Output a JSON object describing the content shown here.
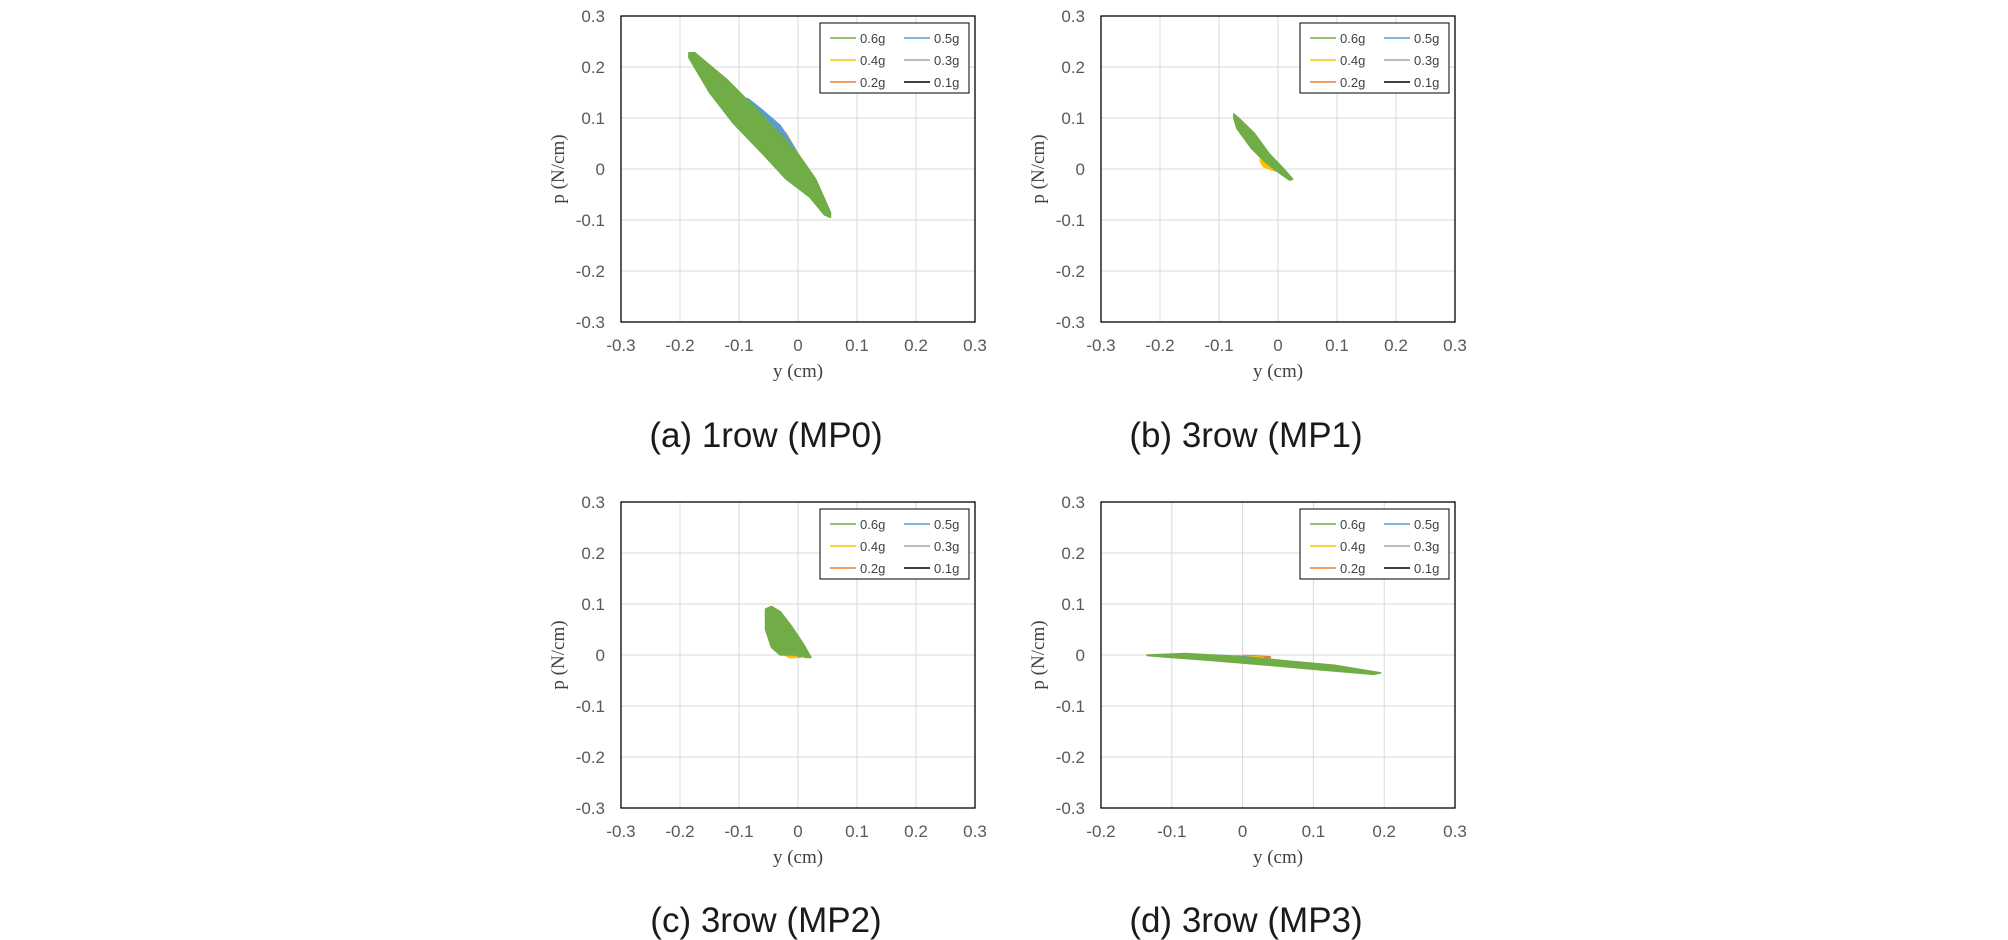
{
  "colors": {
    "0.6g": "#70ad47",
    "0.5g": "#5b9bd5",
    "0.4g": "#ffc000",
    "0.3g": "#a5a5a5",
    "0.2g": "#ed7d31",
    "0.1g": "#000000"
  },
  "chart_data": [
    {
      "type": "scatter",
      "caption": "(a) 1row (MP0)",
      "xlabel": "y (cm)",
      "ylabel": "p (N/cm)",
      "xlim": [
        -0.3,
        0.3
      ],
      "ylim": [
        -0.3,
        0.3
      ],
      "xticks": [
        "-0.3",
        "-0.2",
        "-0.1",
        "0",
        "0.1",
        "0.2",
        "0.3"
      ],
      "yticks": [
        "0.3",
        "0.2",
        "0.1",
        "0",
        "-0.1",
        "-0.2",
        "-0.3"
      ],
      "grid": true,
      "legend": "top-right",
      "series": [
        {
          "name": "0.6g",
          "points": [
            [
              -0.185,
              0.228
            ],
            [
              -0.175,
              0.228
            ],
            [
              -0.12,
              0.175
            ],
            [
              -0.06,
              0.105
            ],
            [
              0.0,
              0.03
            ],
            [
              0.03,
              -0.02
            ],
            [
              0.055,
              -0.085
            ],
            [
              0.055,
              -0.095
            ],
            [
              0.045,
              -0.09
            ],
            [
              0.02,
              -0.055
            ],
            [
              -0.02,
              -0.02
            ],
            [
              -0.06,
              0.03
            ],
            [
              -0.11,
              0.09
            ],
            [
              -0.15,
              0.15
            ],
            [
              -0.185,
              0.218
            ]
          ]
        },
        {
          "name": "0.5g",
          "points": [
            [
              -0.095,
              0.138
            ],
            [
              -0.085,
              0.138
            ],
            [
              -0.06,
              0.115
            ],
            [
              -0.03,
              0.085
            ],
            [
              -0.005,
              0.04
            ],
            [
              0.01,
              0.005
            ],
            [
              0.005,
              0.0
            ],
            [
              -0.02,
              0.03
            ],
            [
              -0.045,
              0.065
            ],
            [
              -0.07,
              0.095
            ],
            [
              -0.095,
              0.128
            ]
          ]
        },
        {
          "name": "0.4g",
          "points": [
            [
              -0.05,
              0.09
            ],
            [
              -0.04,
              0.095
            ],
            [
              -0.02,
              0.07
            ],
            [
              -0.005,
              0.04
            ],
            [
              0.005,
              0.01
            ],
            [
              0.0,
              0.0
            ],
            [
              -0.015,
              0.02
            ],
            [
              -0.035,
              0.05
            ],
            [
              -0.05,
              0.08
            ]
          ]
        },
        {
          "name": "0.3g",
          "points": [
            [
              -0.005,
              -0.005
            ],
            [
              0.005,
              -0.002
            ],
            [
              0.018,
              -0.005
            ],
            [
              0.02,
              -0.015
            ],
            [
              0.015,
              -0.025
            ],
            [
              0.005,
              -0.028
            ],
            [
              -0.003,
              -0.02
            ],
            [
              -0.005,
              -0.005
            ]
          ]
        },
        {
          "name": "0.2g",
          "points": [
            [
              -0.008,
              -0.002
            ],
            [
              0.005,
              -0.005
            ],
            [
              0.01,
              -0.01
            ],
            [
              0.0,
              -0.008
            ],
            [
              -0.008,
              -0.002
            ]
          ]
        },
        {
          "name": "0.1g",
          "points": [
            [
              -0.004,
              0.0
            ],
            [
              0.004,
              -0.004
            ]
          ]
        }
      ]
    },
    {
      "type": "scatter",
      "caption": "(b) 3row (MP1)",
      "xlabel": "y (cm)",
      "ylabel": "p (N/cm)",
      "xlim": [
        -0.3,
        0.3
      ],
      "ylim": [
        -0.3,
        0.3
      ],
      "xticks": [
        "-0.3",
        "-0.2",
        "-0.1",
        "0",
        "0.1",
        "0.2",
        "0.3"
      ],
      "yticks": [
        "0.3",
        "0.2",
        "0.1",
        "0",
        "-0.1",
        "-0.2",
        "-0.3"
      ],
      "grid": true,
      "legend": "top-right",
      "series": [
        {
          "name": "0.6g",
          "points": [
            [
              -0.075,
              0.108
            ],
            [
              -0.065,
              0.098
            ],
            [
              -0.04,
              0.07
            ],
            [
              -0.015,
              0.03
            ],
            [
              0.01,
              0.0
            ],
            [
              0.025,
              -0.02
            ],
            [
              0.02,
              -0.022
            ],
            [
              0.005,
              -0.01
            ],
            [
              -0.02,
              0.012
            ],
            [
              -0.045,
              0.04
            ],
            [
              -0.07,
              0.08
            ],
            [
              -0.075,
              0.1
            ]
          ]
        },
        {
          "name": "0.5g",
          "points": [
            [
              -0.045,
              0.055
            ],
            [
              -0.035,
              0.055
            ],
            [
              -0.02,
              0.035
            ],
            [
              -0.005,
              0.01
            ],
            [
              0.0,
              0.0
            ],
            [
              -0.01,
              0.008
            ],
            [
              -0.025,
              0.025
            ],
            [
              -0.04,
              0.045
            ]
          ]
        },
        {
          "name": "0.4g",
          "points": [
            [
              -0.03,
              0.02
            ],
            [
              -0.015,
              0.01
            ],
            [
              -0.005,
              0.0
            ],
            [
              -0.01,
              -0.002
            ],
            [
              -0.025,
              0.005
            ],
            [
              -0.03,
              0.015
            ]
          ]
        },
        {
          "name": "0.3g",
          "points": [
            [
              -0.01,
              0.0
            ],
            [
              0.0,
              -0.002
            ]
          ]
        },
        {
          "name": "0.2g",
          "points": [
            [
              -0.012,
              0.002
            ],
            [
              -0.002,
              -0.003
            ]
          ]
        },
        {
          "name": "0.1g",
          "points": [
            [
              -0.005,
              0.0
            ],
            [
              0.003,
              -0.003
            ]
          ]
        }
      ]
    },
    {
      "type": "scatter",
      "caption": "(c) 3row (MP2)",
      "xlabel": "y (cm)",
      "ylabel": "p (N/cm)",
      "xlim": [
        -0.3,
        0.3
      ],
      "ylim": [
        -0.3,
        0.3
      ],
      "xticks": [
        "-0.3",
        "-0.2",
        "-0.1",
        "0",
        "0.1",
        "0.2",
        "0.3"
      ],
      "yticks": [
        "0.3",
        "0.2",
        "0.1",
        "0",
        "-0.1",
        "-0.2",
        "-0.3"
      ],
      "grid": true,
      "legend": "top-right",
      "series": [
        {
          "name": "0.6g",
          "points": [
            [
              -0.055,
              0.09
            ],
            [
              -0.045,
              0.095
            ],
            [
              -0.03,
              0.085
            ],
            [
              -0.01,
              0.055
            ],
            [
              0.01,
              0.02
            ],
            [
              0.022,
              -0.005
            ],
            [
              0.015,
              -0.005
            ],
            [
              -0.005,
              0.0
            ],
            [
              -0.03,
              0.0
            ],
            [
              -0.045,
              0.015
            ],
            [
              -0.055,
              0.05
            ],
            [
              -0.055,
              0.085
            ]
          ]
        },
        {
          "name": "0.5g",
          "points": [
            [
              -0.025,
              0.03
            ],
            [
              -0.01,
              0.025
            ],
            [
              0.005,
              0.01
            ],
            [
              0.01,
              0.0
            ],
            [
              0.0,
              -0.002
            ],
            [
              -0.015,
              0.005
            ],
            [
              -0.025,
              0.02
            ]
          ]
        },
        {
          "name": "0.4g",
          "points": [
            [
              -0.025,
              0.005
            ],
            [
              -0.01,
              0.0
            ],
            [
              0.0,
              -0.005
            ],
            [
              -0.015,
              -0.005
            ],
            [
              -0.025,
              0.002
            ]
          ]
        },
        {
          "name": "0.3g",
          "points": [
            [
              -0.005,
              0.0
            ],
            [
              0.005,
              -0.002
            ]
          ]
        },
        {
          "name": "0.2g",
          "points": [
            [
              -0.02,
              0.002
            ],
            [
              -0.005,
              -0.004
            ]
          ]
        },
        {
          "name": "0.1g",
          "points": [
            [
              -0.003,
              0.0
            ],
            [
              0.005,
              -0.003
            ]
          ]
        }
      ]
    },
    {
      "type": "scatter",
      "caption": "(d) 3row (MP3)",
      "xlabel": "y (cm)",
      "ylabel": "p (N/cm)",
      "xlim": [
        -0.2,
        0.3
      ],
      "ylim": [
        -0.3,
        0.3
      ],
      "xticks": [
        "-0.2",
        "-0.1",
        "0",
        "0.1",
        "0.2",
        "0.3"
      ],
      "yticks": [
        "0.3",
        "0.2",
        "0.1",
        "0",
        "-0.1",
        "-0.2",
        "-0.3"
      ],
      "grid": true,
      "legend": "top-right",
      "series": [
        {
          "name": "0.6g",
          "points": [
            [
              -0.135,
              0.0
            ],
            [
              -0.08,
              0.003
            ],
            [
              -0.02,
              -0.002
            ],
            [
              0.05,
              -0.01
            ],
            [
              0.13,
              -0.02
            ],
            [
              0.195,
              -0.035
            ],
            [
              0.185,
              -0.038
            ],
            [
              0.1,
              -0.028
            ],
            [
              0.02,
              -0.018
            ],
            [
              -0.05,
              -0.01
            ],
            [
              -0.11,
              -0.004
            ],
            [
              -0.135,
              -0.001
            ]
          ]
        },
        {
          "name": "0.5g",
          "points": [
            [
              -0.04,
              0.0
            ],
            [
              0.0,
              -0.003
            ],
            [
              0.05,
              -0.01
            ],
            [
              0.1,
              -0.02
            ],
            [
              0.095,
              -0.024
            ],
            [
              0.04,
              -0.017
            ],
            [
              -0.01,
              -0.01
            ],
            [
              -0.04,
              -0.004
            ]
          ]
        },
        {
          "name": "0.4g",
          "points": [
            [
              -0.01,
              -0.003
            ],
            [
              0.03,
              -0.006
            ]
          ]
        },
        {
          "name": "0.3g",
          "points": [
            [
              0.0,
              -0.004
            ],
            [
              0.02,
              -0.006
            ]
          ]
        },
        {
          "name": "0.2g",
          "points": [
            [
              0.0,
              -0.002
            ],
            [
              0.04,
              -0.005
            ]
          ]
        },
        {
          "name": "0.1g",
          "points": [
            [
              -0.005,
              -0.004
            ],
            [
              0.01,
              -0.005
            ]
          ]
        }
      ]
    }
  ]
}
